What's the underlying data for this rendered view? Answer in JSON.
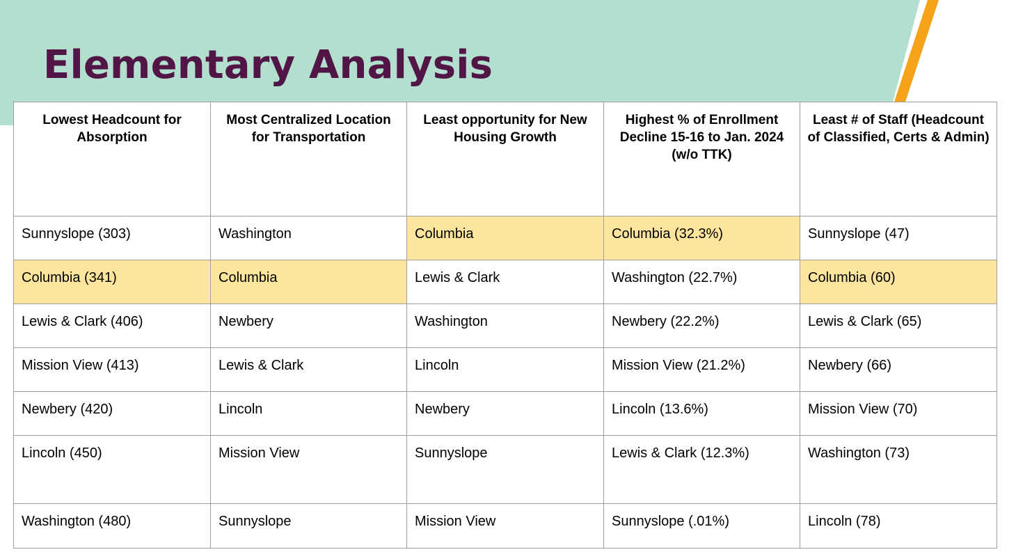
{
  "slide": {
    "title": "Elementary Analysis",
    "colors": {
      "banner": "#b2dfce",
      "accent_stripe": "#f6a21a",
      "title_text": "#521646",
      "highlight": "#fde59e",
      "border": "#9e9e9e"
    }
  },
  "table": {
    "headers": [
      "Lowest Headcount for Absorption",
      "Most Centralized Location for Transportation",
      "Least opportunity for New Housing Growth",
      "Highest %  of Enrollment Decline 15-16 to Jan. 2024 (w/o TTK)",
      "Least # of Staff (Headcount of Classified, Certs & Admin)"
    ],
    "rows": [
      [
        "Sunnyslope (303)",
        "Washington",
        "Columbia",
        "Columbia (32.3%)",
        "Sunnyslope (47)"
      ],
      [
        "Columbia (341)",
        "Columbia",
        "Lewis & Clark",
        "Washington (22.7%)",
        "Columbia (60)"
      ],
      [
        "Lewis & Clark (406)",
        "Newbery",
        "Washington",
        "Newbery (22.2%)",
        "Lewis & Clark (65)"
      ],
      [
        "Mission View (413)",
        "Lewis & Clark",
        "Lincoln",
        "Mission View (21.2%)",
        "Newbery (66)"
      ],
      [
        "Newbery (420)",
        "Lincoln",
        "Newbery",
        "Lincoln (13.6%)",
        "Mission View (70)"
      ],
      [
        "Lincoln (450)",
        "Mission View",
        "Sunnyslope",
        "Lewis & Clark (12.3%)",
        "Washington (73)"
      ],
      [
        "Washington (480)",
        "Sunnyslope",
        "Mission View",
        "Sunnyslope (.01%)",
        "Lincoln (78)"
      ]
    ],
    "highlighted_cells": [
      "0-2",
      "0-3",
      "1-0",
      "1-1",
      "1-4"
    ]
  }
}
